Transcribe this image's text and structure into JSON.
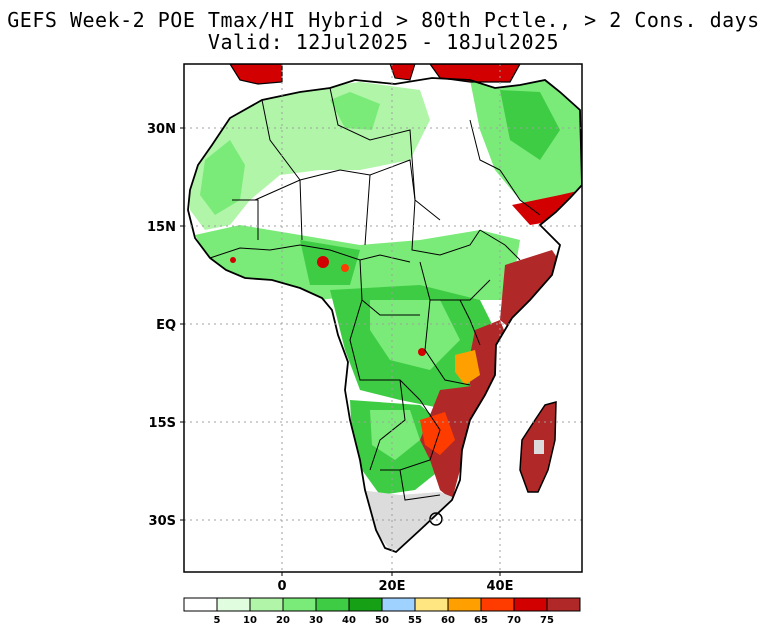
{
  "title": {
    "line1": "GEFS Week-2 POE Tmax/HI Hybrid > 80th Pctle., > 2 Cons. days",
    "line2": "Valid: 12Jul2025 - 18Jul2025"
  },
  "axes": {
    "lat_labels": [
      "30N",
      "15N",
      "EQ",
      "15S",
      "30S"
    ],
    "lon_labels": [
      "0",
      "20E",
      "40E"
    ]
  },
  "colorbar": {
    "colors": [
      "#ffffff",
      "#e0fde0",
      "#b0f5a8",
      "#7aeb78",
      "#3fcc45",
      "#16a016",
      "#a0d2ff",
      "#ffe680",
      "#ffa000",
      "#ff3c00",
      "#d20000",
      "#b02828"
    ],
    "labels": [
      "5",
      "10",
      "20",
      "30",
      "40",
      "50",
      "55",
      "60",
      "65",
      "70",
      "75"
    ]
  },
  "palette": {
    "land_base": "#ffffff",
    "no_data": "#dcdcdc",
    "frame": "#000000",
    "grid": "#a0a0a0"
  }
}
